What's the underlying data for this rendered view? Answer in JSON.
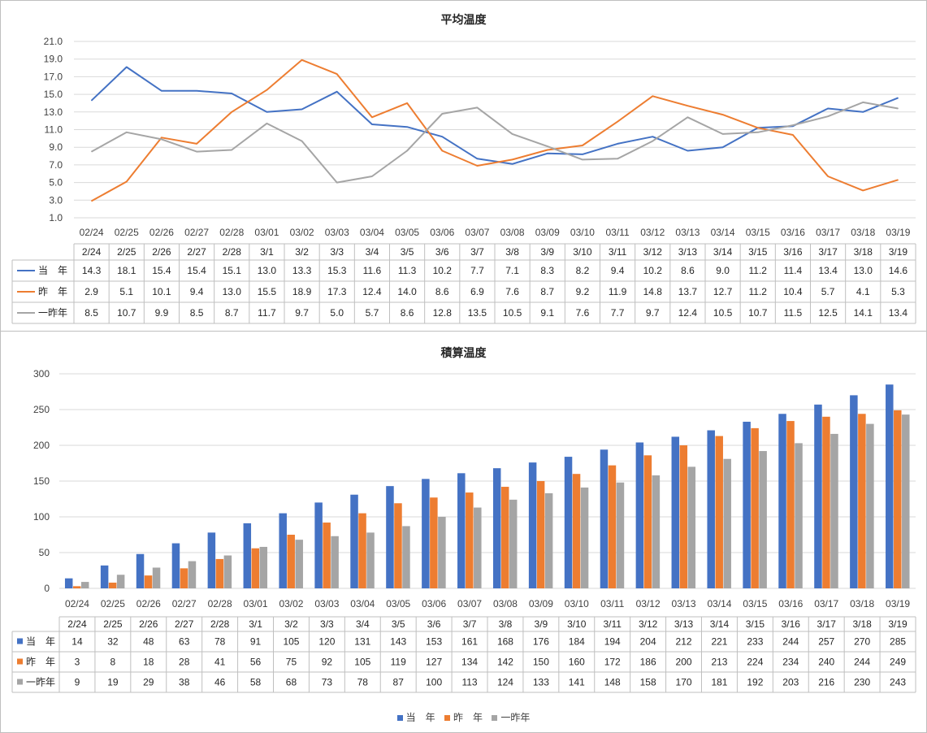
{
  "colors": {
    "current": "#4472c4",
    "last": "#ed7d31",
    "twoago": "#a5a5a5",
    "grid": "#d9d9d9",
    "table": "#bfbfbf"
  },
  "x_axis_labels": [
    "02/24",
    "02/25",
    "02/26",
    "02/27",
    "02/28",
    "03/01",
    "03/02",
    "03/03",
    "03/04",
    "03/05",
    "03/06",
    "03/07",
    "03/08",
    "03/09",
    "03/10",
    "03/11",
    "03/12",
    "03/13",
    "03/14",
    "03/15",
    "03/16",
    "03/17",
    "03/18",
    "03/19"
  ],
  "table_headers": [
    "2/24",
    "2/25",
    "2/26",
    "2/27",
    "2/28",
    "3/1",
    "3/2",
    "3/3",
    "3/4",
    "3/5",
    "3/6",
    "3/7",
    "3/8",
    "3/9",
    "3/10",
    "3/11",
    "3/12",
    "3/13",
    "3/14",
    "3/15",
    "3/16",
    "3/17",
    "3/18",
    "3/19"
  ],
  "series_names": [
    "当　年",
    "昨　年",
    "一昨年"
  ],
  "chart_data": [
    {
      "type": "line",
      "title": "平均温度",
      "ylim": [
        1.0,
        21.0
      ],
      "yticks": [
        "1.0",
        "3.0",
        "5.0",
        "7.0",
        "9.0",
        "11.0",
        "13.0",
        "15.0",
        "17.0",
        "19.0",
        "21.0"
      ],
      "grid": true,
      "series": [
        {
          "name": "当　年",
          "values": [
            14.3,
            18.1,
            15.4,
            15.4,
            15.1,
            13.0,
            13.3,
            15.3,
            11.6,
            11.3,
            10.2,
            7.7,
            7.1,
            8.3,
            8.2,
            9.4,
            10.2,
            8.6,
            9.0,
            11.2,
            11.4,
            13.4,
            13.0,
            14.6
          ]
        },
        {
          "name": "昨　年",
          "values": [
            2.9,
            5.1,
            10.1,
            9.4,
            13.0,
            15.5,
            18.9,
            17.3,
            12.4,
            14.0,
            8.6,
            6.9,
            7.6,
            8.7,
            9.2,
            11.9,
            14.8,
            13.7,
            12.7,
            11.2,
            10.4,
            5.7,
            4.1,
            5.3
          ]
        },
        {
          "name": "一昨年",
          "values": [
            8.5,
            10.7,
            9.9,
            8.5,
            8.7,
            11.7,
            9.7,
            5.0,
            5.7,
            8.6,
            12.8,
            13.5,
            10.5,
            9.1,
            7.6,
            7.7,
            9.7,
            12.4,
            10.5,
            10.7,
            11.5,
            12.5,
            14.1,
            13.4
          ]
        }
      ]
    },
    {
      "type": "bar",
      "title": "積算温度",
      "ylim": [
        0,
        300
      ],
      "yticks": [
        "0",
        "50",
        "100",
        "150",
        "200",
        "250",
        "300"
      ],
      "grid": true,
      "legend": "bottom",
      "series": [
        {
          "name": "当　年",
          "values": [
            14,
            32,
            48,
            63,
            78,
            91,
            105,
            120,
            131,
            143,
            153,
            161,
            168,
            176,
            184,
            194,
            204,
            212,
            221,
            233,
            244,
            257,
            270,
            285
          ]
        },
        {
          "name": "昨　年",
          "values": [
            3,
            8,
            18,
            28,
            41,
            56,
            75,
            92,
            105,
            119,
            127,
            134,
            142,
            150,
            160,
            172,
            186,
            200,
            213,
            224,
            234,
            240,
            244,
            249
          ]
        },
        {
          "name": "一昨年",
          "values": [
            9,
            19,
            29,
            38,
            46,
            58,
            68,
            73,
            78,
            87,
            100,
            113,
            124,
            133,
            141,
            148,
            158,
            170,
            181,
            192,
            203,
            216,
            230,
            243
          ]
        }
      ]
    }
  ]
}
